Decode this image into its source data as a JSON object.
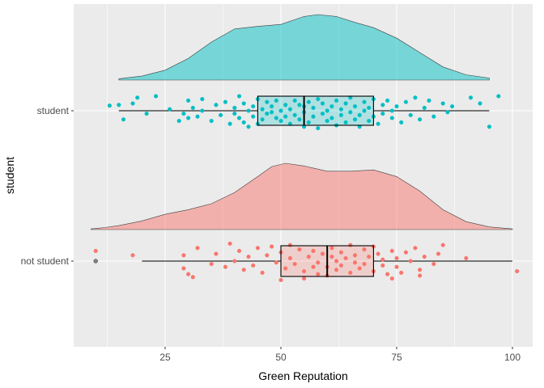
{
  "chart_data": {
    "type": "raincloud",
    "xlabel": "Green Reputation",
    "ylabel": "student",
    "xlim": [
      5,
      102
    ],
    "x_ticks": [
      25,
      50,
      75,
      100
    ],
    "x_tick_labels": [
      "25",
      "50",
      "75",
      "100"
    ],
    "categories": [
      "student",
      "not student"
    ],
    "grid": true,
    "legend": "none",
    "groups": [
      {
        "category": "student",
        "color": "#00BFC4",
        "density": {
          "x": [
            15,
            20,
            25,
            30,
            35,
            40,
            45,
            50,
            55,
            58,
            62,
            66,
            70,
            75,
            80,
            85,
            90,
            95
          ],
          "y": [
            0.02,
            0.06,
            0.15,
            0.33,
            0.58,
            0.78,
            0.82,
            0.85,
            0.97,
            1.0,
            0.97,
            0.88,
            0.8,
            0.64,
            0.42,
            0.2,
            0.08,
            0.03
          ]
        },
        "box": {
          "min": 15,
          "q1": 45,
          "median": 55,
          "q3": 70,
          "max": 95
        },
        "outliers": [],
        "points": [
          {
            "x": 13,
            "y": -0.35
          },
          {
            "x": 15,
            "y": -0.4
          },
          {
            "x": 16,
            "y": 0.6
          },
          {
            "x": 18,
            "y": -0.5
          },
          {
            "x": 19,
            "y": -0.9
          },
          {
            "x": 21,
            "y": 0.2
          },
          {
            "x": 23,
            "y": -1.0
          },
          {
            "x": 26,
            "y": -0.1
          },
          {
            "x": 28,
            "y": 0.7
          },
          {
            "x": 29,
            "y": 0.2
          },
          {
            "x": 30,
            "y": 0.5
          },
          {
            "x": 30,
            "y": -0.7
          },
          {
            "x": 31,
            "y": -0.2
          },
          {
            "x": 32,
            "y": 0.4
          },
          {
            "x": 33,
            "y": -0.8
          },
          {
            "x": 33,
            "y": 0.0
          },
          {
            "x": 35,
            "y": 0.7
          },
          {
            "x": 36,
            "y": -0.4
          },
          {
            "x": 37,
            "y": 0.3
          },
          {
            "x": 38,
            "y": -0.6
          },
          {
            "x": 39,
            "y": 0.9
          },
          {
            "x": 40,
            "y": 0.2
          },
          {
            "x": 40,
            "y": -0.2
          },
          {
            "x": 41,
            "y": 0.5
          },
          {
            "x": 41,
            "y": -1.0
          },
          {
            "x": 42,
            "y": 0.8
          },
          {
            "x": 42,
            "y": -0.5
          },
          {
            "x": 43,
            "y": 0.0
          },
          {
            "x": 43,
            "y": 1.1
          },
          {
            "x": 44,
            "y": -0.3
          },
          {
            "x": 44,
            "y": 0.4
          },
          {
            "x": 45,
            "y": -0.8
          },
          {
            "x": 45,
            "y": 0.9
          },
          {
            "x": 46,
            "y": -0.1
          },
          {
            "x": 46,
            "y": 0.6
          },
          {
            "x": 47,
            "y": 0.2
          },
          {
            "x": 47,
            "y": -0.6
          },
          {
            "x": 48,
            "y": 0.1
          },
          {
            "x": 48,
            "y": -0.3
          },
          {
            "x": 49,
            "y": 0.5
          },
          {
            "x": 49,
            "y": -0.7
          },
          {
            "x": 50,
            "y": 0.7
          },
          {
            "x": 50,
            "y": 0.0
          },
          {
            "x": 51,
            "y": -0.4
          },
          {
            "x": 51,
            "y": 0.4
          },
          {
            "x": 52,
            "y": 0.9
          },
          {
            "x": 52,
            "y": -0.1
          },
          {
            "x": 53,
            "y": -0.7
          },
          {
            "x": 53,
            "y": 0.3
          },
          {
            "x": 54,
            "y": 0.6
          },
          {
            "x": 54,
            "y": -0.4
          },
          {
            "x": 55,
            "y": 1.1
          },
          {
            "x": 55,
            "y": 0.1
          },
          {
            "x": 55,
            "y": -0.3
          },
          {
            "x": 56,
            "y": 0.8
          },
          {
            "x": 56,
            "y": -0.6
          },
          {
            "x": 57,
            "y": 0.4
          },
          {
            "x": 57,
            "y": -0.2
          },
          {
            "x": 58,
            "y": 1.2
          },
          {
            "x": 58,
            "y": -0.8
          },
          {
            "x": 59,
            "y": 0.2
          },
          {
            "x": 59,
            "y": -0.5
          },
          {
            "x": 60,
            "y": 0.7
          },
          {
            "x": 60,
            "y": 0.0
          },
          {
            "x": 61,
            "y": -0.3
          },
          {
            "x": 61,
            "y": 0.5
          },
          {
            "x": 62,
            "y": 1.0
          },
          {
            "x": 62,
            "y": -0.7
          },
          {
            "x": 63,
            "y": 0.3
          },
          {
            "x": 63,
            "y": -0.1
          },
          {
            "x": 64,
            "y": -0.5
          },
          {
            "x": 64,
            "y": 0.8
          },
          {
            "x": 65,
            "y": 0.1
          },
          {
            "x": 65,
            "y": -0.9
          },
          {
            "x": 66,
            "y": 0.6
          },
          {
            "x": 66,
            "y": -0.3
          },
          {
            "x": 67,
            "y": 0.3
          },
          {
            "x": 67,
            "y": 1.1
          },
          {
            "x": 68,
            "y": -0.6
          },
          {
            "x": 68,
            "y": 0.0
          },
          {
            "x": 69,
            "y": 0.7
          },
          {
            "x": 69,
            "y": -0.2
          },
          {
            "x": 70,
            "y": 0.4
          },
          {
            "x": 70,
            "y": -0.8
          },
          {
            "x": 71,
            "y": 0.9
          },
          {
            "x": 72,
            "y": -0.4
          },
          {
            "x": 72,
            "y": 0.2
          },
          {
            "x": 73,
            "y": -0.7
          },
          {
            "x": 74,
            "y": 0.5
          },
          {
            "x": 74,
            "y": 0.0
          },
          {
            "x": 75,
            "y": -0.3
          },
          {
            "x": 76,
            "y": 0.8
          },
          {
            "x": 77,
            "y": -0.6
          },
          {
            "x": 78,
            "y": 0.3
          },
          {
            "x": 79,
            "y": -0.9
          },
          {
            "x": 80,
            "y": 0.6
          },
          {
            "x": 81,
            "y": -0.2
          },
          {
            "x": 82,
            "y": -0.7
          },
          {
            "x": 83,
            "y": 0.4
          },
          {
            "x": 85,
            "y": -0.5
          },
          {
            "x": 86,
            "y": 0.1
          },
          {
            "x": 87,
            "y": -0.3
          },
          {
            "x": 91,
            "y": -0.9
          },
          {
            "x": 93,
            "y": -0.5
          },
          {
            "x": 95,
            "y": 1.1
          },
          {
            "x": 97,
            "y": -1.0
          }
        ]
      },
      {
        "category": "not student",
        "color": "#F8766D",
        "density": {
          "x": [
            9,
            12,
            15,
            20,
            25,
            30,
            35,
            40,
            45,
            48,
            51,
            55,
            60,
            65,
            70,
            75,
            80,
            85,
            90,
            95,
            100
          ],
          "y": [
            0.01,
            0.03,
            0.06,
            0.13,
            0.23,
            0.3,
            0.39,
            0.56,
            0.8,
            0.95,
            1.0,
            0.96,
            0.88,
            0.88,
            0.9,
            0.8,
            0.58,
            0.3,
            0.12,
            0.04,
            0.01
          ]
        },
        "box": {
          "min": 20,
          "q1": 50,
          "median": 60,
          "q3": 70,
          "max": 100
        },
        "outliers": [
          {
            "x": 10,
            "y": 0.0
          }
        ],
        "points": [
          {
            "x": 10,
            "y": -0.7
          },
          {
            "x": 18,
            "y": -0.4
          },
          {
            "x": 29,
            "y": 0.5
          },
          {
            "x": 29,
            "y": -0.4
          },
          {
            "x": 30,
            "y": 0.9
          },
          {
            "x": 31,
            "y": 1.1
          },
          {
            "x": 32,
            "y": -0.9
          },
          {
            "x": 35,
            "y": 0.2
          },
          {
            "x": 36,
            "y": -0.5
          },
          {
            "x": 38,
            "y": 0.4
          },
          {
            "x": 39,
            "y": -1.2
          },
          {
            "x": 40,
            "y": 0.0
          },
          {
            "x": 41,
            "y": -0.7
          },
          {
            "x": 42,
            "y": 0.6
          },
          {
            "x": 43,
            "y": -0.3
          },
          {
            "x": 44,
            "y": 0.3
          },
          {
            "x": 45,
            "y": -0.9
          },
          {
            "x": 46,
            "y": 0.8
          },
          {
            "x": 47,
            "y": -0.4
          },
          {
            "x": 48,
            "y": -1.0
          },
          {
            "x": 49,
            "y": 0.1
          },
          {
            "x": 50,
            "y": 1.3
          },
          {
            "x": 50,
            "y": -0.6
          },
          {
            "x": 51,
            "y": 0.5
          },
          {
            "x": 52,
            "y": -0.2
          },
          {
            "x": 52,
            "y": -1.1
          },
          {
            "x": 53,
            "y": 0.2
          },
          {
            "x": 54,
            "y": -0.8
          },
          {
            "x": 55,
            "y": 0.7
          },
          {
            "x": 55,
            "y": 1.2
          },
          {
            "x": 56,
            "y": -0.3
          },
          {
            "x": 57,
            "y": 0.4
          },
          {
            "x": 57,
            "y": -0.7
          },
          {
            "x": 58,
            "y": 0.9
          },
          {
            "x": 58,
            "y": 0.1
          },
          {
            "x": 59,
            "y": -0.5
          },
          {
            "x": 60,
            "y": 1.0
          },
          {
            "x": 60,
            "y": 0.4
          },
          {
            "x": 61,
            "y": -0.3
          },
          {
            "x": 61,
            "y": -0.9
          },
          {
            "x": 62,
            "y": 0.6
          },
          {
            "x": 62,
            "y": 0.0
          },
          {
            "x": 63,
            "y": -0.6
          },
          {
            "x": 63,
            "y": 0.3
          },
          {
            "x": 64,
            "y": -0.2
          },
          {
            "x": 65,
            "y": 0.8
          },
          {
            "x": 65,
            "y": -1.1
          },
          {
            "x": 66,
            "y": 0.1
          },
          {
            "x": 66,
            "y": -0.4
          },
          {
            "x": 67,
            "y": 0.5
          },
          {
            "x": 68,
            "y": -0.8
          },
          {
            "x": 68,
            "y": 0.2
          },
          {
            "x": 69,
            "y": -0.3
          },
          {
            "x": 70,
            "y": 0.7
          },
          {
            "x": 70,
            "y": -1.0
          },
          {
            "x": 71,
            "y": -0.5
          },
          {
            "x": 72,
            "y": 0.3
          },
          {
            "x": 72,
            "y": -0.1
          },
          {
            "x": 73,
            "y": 0.9
          },
          {
            "x": 74,
            "y": -0.7
          },
          {
            "x": 74,
            "y": 1.2
          },
          {
            "x": 75,
            "y": 0.4
          },
          {
            "x": 75,
            "y": -0.2
          },
          {
            "x": 76,
            "y": 0.8
          },
          {
            "x": 77,
            "y": -0.6
          },
          {
            "x": 78,
            "y": 0.0
          },
          {
            "x": 79,
            "y": -0.9
          },
          {
            "x": 80,
            "y": 0.6
          },
          {
            "x": 80,
            "y": 1.0
          },
          {
            "x": 81,
            "y": -0.3
          },
          {
            "x": 83,
            "y": 0.2
          },
          {
            "x": 84,
            "y": -0.5
          },
          {
            "x": 85,
            "y": -1.1
          },
          {
            "x": 90,
            "y": -0.2
          },
          {
            "x": 101,
            "y": 0.7
          }
        ]
      }
    ]
  }
}
